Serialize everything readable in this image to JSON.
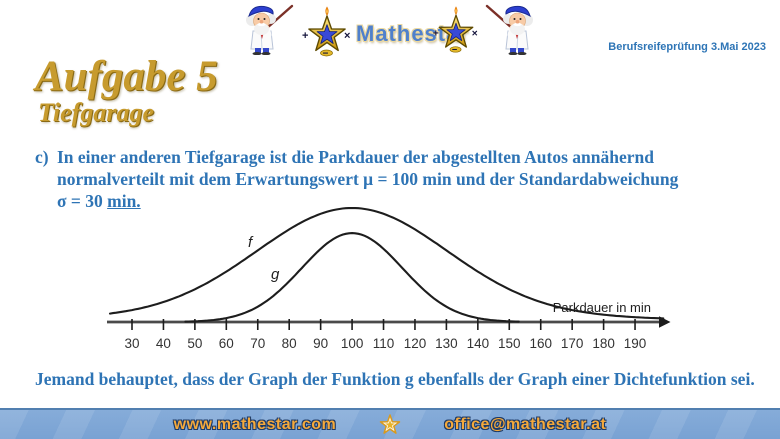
{
  "header": {
    "logo_text": "Mathestar",
    "exam_label": "Berufsreifeprüfung 3.Mai 2023"
  },
  "title": {
    "main": "Aufgabe 5",
    "subtitle": "Tiefgarage"
  },
  "problem": {
    "item_label": "c)",
    "line1": "In einer anderen Tiefgarage ist die Parkdauer der abgestellten Autos annähernd",
    "line2": "normalverteilt mit dem Erwartungswert μ = 100 min und der Standardabweichung",
    "line3_prefix": "σ = 30 ",
    "line3_underlined": "min."
  },
  "claim": "Jemand behauptet, dass der Graph der Funktion g ebenfalls der Graph einer Dichtefunktion sei.",
  "chart_data": {
    "type": "line",
    "title": "",
    "xlabel": "Parkdauer in min",
    "ylabel": "",
    "x_ticks": [
      30,
      40,
      50,
      60,
      70,
      80,
      90,
      100,
      110,
      120,
      130,
      140,
      150,
      160,
      170,
      180,
      190
    ],
    "x_axis_range": [
      23,
      200
    ],
    "grid": false,
    "y_axis_shown": false,
    "series": [
      {
        "name": "f",
        "description": "Dichtefunktion, Normalverteilung",
        "mu": 100,
        "sigma": 30,
        "relative_peak": 1.0,
        "draw_range": [
          23,
          199
        ],
        "tail_lift": 0.07,
        "tail_sigma": 72
      },
      {
        "name": "g",
        "description": "schmalere Glockenkurve mit niedrigerem Maximum",
        "mu": 100,
        "sigma": 16,
        "relative_peak": 0.78,
        "draw_range": [
          47,
          153
        ],
        "tail_lift": 0,
        "tail_sigma": 1
      }
    ]
  },
  "footer": {
    "website": "www.mathestar.com",
    "email": "office@mathestar.at"
  },
  "colors": {
    "text_blue": "#2E74B5",
    "title_gold": "#C79B2E",
    "footer_bar": "#7DA7D8",
    "footer_text": "#F5A93B",
    "curve": "#1d1d1d",
    "axis": "#4a4a4a"
  }
}
